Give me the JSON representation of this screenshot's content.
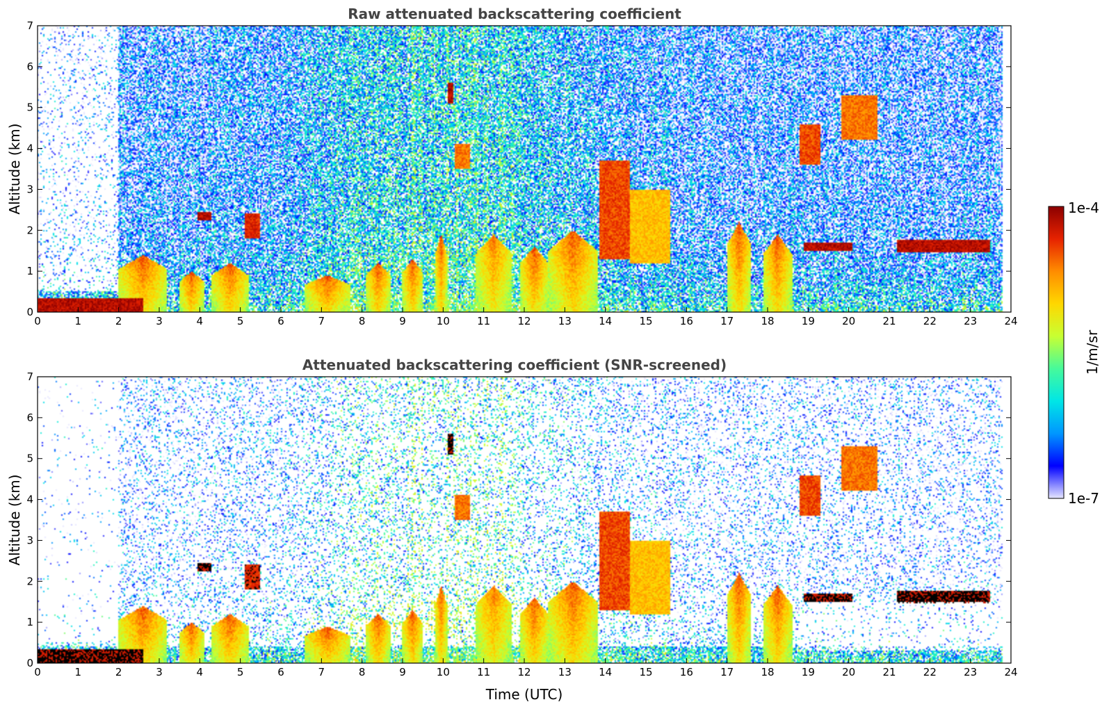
{
  "chart_data": [
    {
      "type": "heatmap",
      "title": "Raw attenuated backscattering coefficient",
      "xlabel": "",
      "ylabel": "Altitude (km)",
      "xlim": [
        0,
        24
      ],
      "ylim": [
        0,
        7
      ],
      "x_ticks": [
        0,
        1,
        2,
        3,
        4,
        5,
        6,
        7,
        8,
        9,
        10,
        11,
        12,
        13,
        14,
        15,
        16,
        17,
        18,
        19,
        20,
        21,
        22,
        23,
        24
      ],
      "y_ticks": [
        0,
        1,
        2,
        3,
        4,
        5,
        6,
        7
      ],
      "data_end_time": 23.8,
      "features": [
        {
          "name": "surface layer",
          "t_start": 0,
          "t_end": 2.6,
          "alt_bottom": 0.0,
          "alt_top": 0.35,
          "level": 0.95
        },
        {
          "name": "cloud",
          "t_start": 3.95,
          "t_end": 4.3,
          "alt_bottom": 2.25,
          "alt_top": 2.45,
          "level": 0.95
        },
        {
          "name": "cloud",
          "t_start": 5.1,
          "t_end": 5.5,
          "alt_bottom": 1.8,
          "alt_top": 2.4,
          "level": 0.9
        },
        {
          "name": "cloud",
          "t_start": 10.1,
          "t_end": 10.25,
          "alt_bottom": 5.1,
          "alt_top": 5.6,
          "level": 0.95
        },
        {
          "name": "cloud",
          "t_start": 10.3,
          "t_end": 10.65,
          "alt_bottom": 3.5,
          "alt_top": 4.1,
          "level": 0.8
        },
        {
          "name": "plume",
          "t_start": 13.85,
          "t_end": 14.6,
          "alt_bottom": 1.3,
          "alt_top": 3.7,
          "level": 0.85
        },
        {
          "name": "plume",
          "t_start": 14.6,
          "t_end": 15.6,
          "alt_bottom": 1.2,
          "alt_top": 3.0,
          "level": 0.7
        },
        {
          "name": "cloud",
          "t_start": 18.8,
          "t_end": 19.3,
          "alt_bottom": 3.6,
          "alt_top": 4.6,
          "level": 0.85
        },
        {
          "name": "cloud",
          "t_start": 19.8,
          "t_end": 20.7,
          "alt_bottom": 4.2,
          "alt_top": 5.3,
          "level": 0.8
        },
        {
          "name": "cloud layer",
          "t_start": 18.9,
          "t_end": 20.1,
          "alt_bottom": 1.5,
          "alt_top": 1.7,
          "level": 0.95
        },
        {
          "name": "cloud layer",
          "t_start": 21.2,
          "t_end": 23.5,
          "alt_bottom": 1.45,
          "alt_top": 1.75,
          "level": 0.95
        }
      ],
      "columns": [
        {
          "t_start": 2.0,
          "t_end": 3.2,
          "alt_top": 1.4,
          "level": 0.85
        },
        {
          "t_start": 3.5,
          "t_end": 4.1,
          "alt_top": 1.0,
          "level": 0.85
        },
        {
          "t_start": 4.3,
          "t_end": 5.2,
          "alt_top": 1.2,
          "level": 0.85
        },
        {
          "t_start": 6.6,
          "t_end": 7.7,
          "alt_top": 0.9,
          "level": 0.85
        },
        {
          "t_start": 8.1,
          "t_end": 8.7,
          "alt_top": 1.2,
          "level": 0.85
        },
        {
          "t_start": 9.0,
          "t_end": 9.5,
          "alt_top": 1.3,
          "level": 0.85
        },
        {
          "t_start": 9.8,
          "t_end": 10.1,
          "alt_top": 1.9,
          "level": 0.85
        },
        {
          "t_start": 10.8,
          "t_end": 11.7,
          "alt_top": 1.9,
          "level": 0.8
        },
        {
          "t_start": 11.9,
          "t_end": 12.6,
          "alt_top": 1.6,
          "level": 0.85
        },
        {
          "t_start": 12.6,
          "t_end": 13.8,
          "alt_top": 2.0,
          "level": 0.85
        },
        {
          "t_start": 17.0,
          "t_end": 17.6,
          "alt_top": 2.2,
          "level": 0.85
        },
        {
          "t_start": 17.9,
          "t_end": 18.6,
          "alt_top": 1.9,
          "level": 0.85
        }
      ]
    },
    {
      "type": "heatmap",
      "title": "Attenuated backscattering coefficient (SNR-screened)",
      "xlabel": "Time (UTC)",
      "ylabel": "Altitude (km)",
      "xlim": [
        0,
        24
      ],
      "ylim": [
        0,
        7
      ],
      "x_ticks": [
        0,
        1,
        2,
        3,
        4,
        5,
        6,
        7,
        8,
        9,
        10,
        11,
        12,
        13,
        14,
        15,
        16,
        17,
        18,
        19,
        20,
        21,
        22,
        23,
        24
      ],
      "y_ticks": [
        0,
        1,
        2,
        3,
        4,
        5,
        6,
        7
      ],
      "data_end_time": 23.8
    }
  ],
  "colorbar": {
    "label": "1/m/sr",
    "max_label": "1e-4",
    "min_label": "1e-7",
    "colormap": [
      "#e6e6ff",
      "#0000ff",
      "#0096ff",
      "#00e6e6",
      "#46fa9b",
      "#c8ff32",
      "#ffd700",
      "#ff8c00",
      "#e62200",
      "#8c0000"
    ]
  }
}
